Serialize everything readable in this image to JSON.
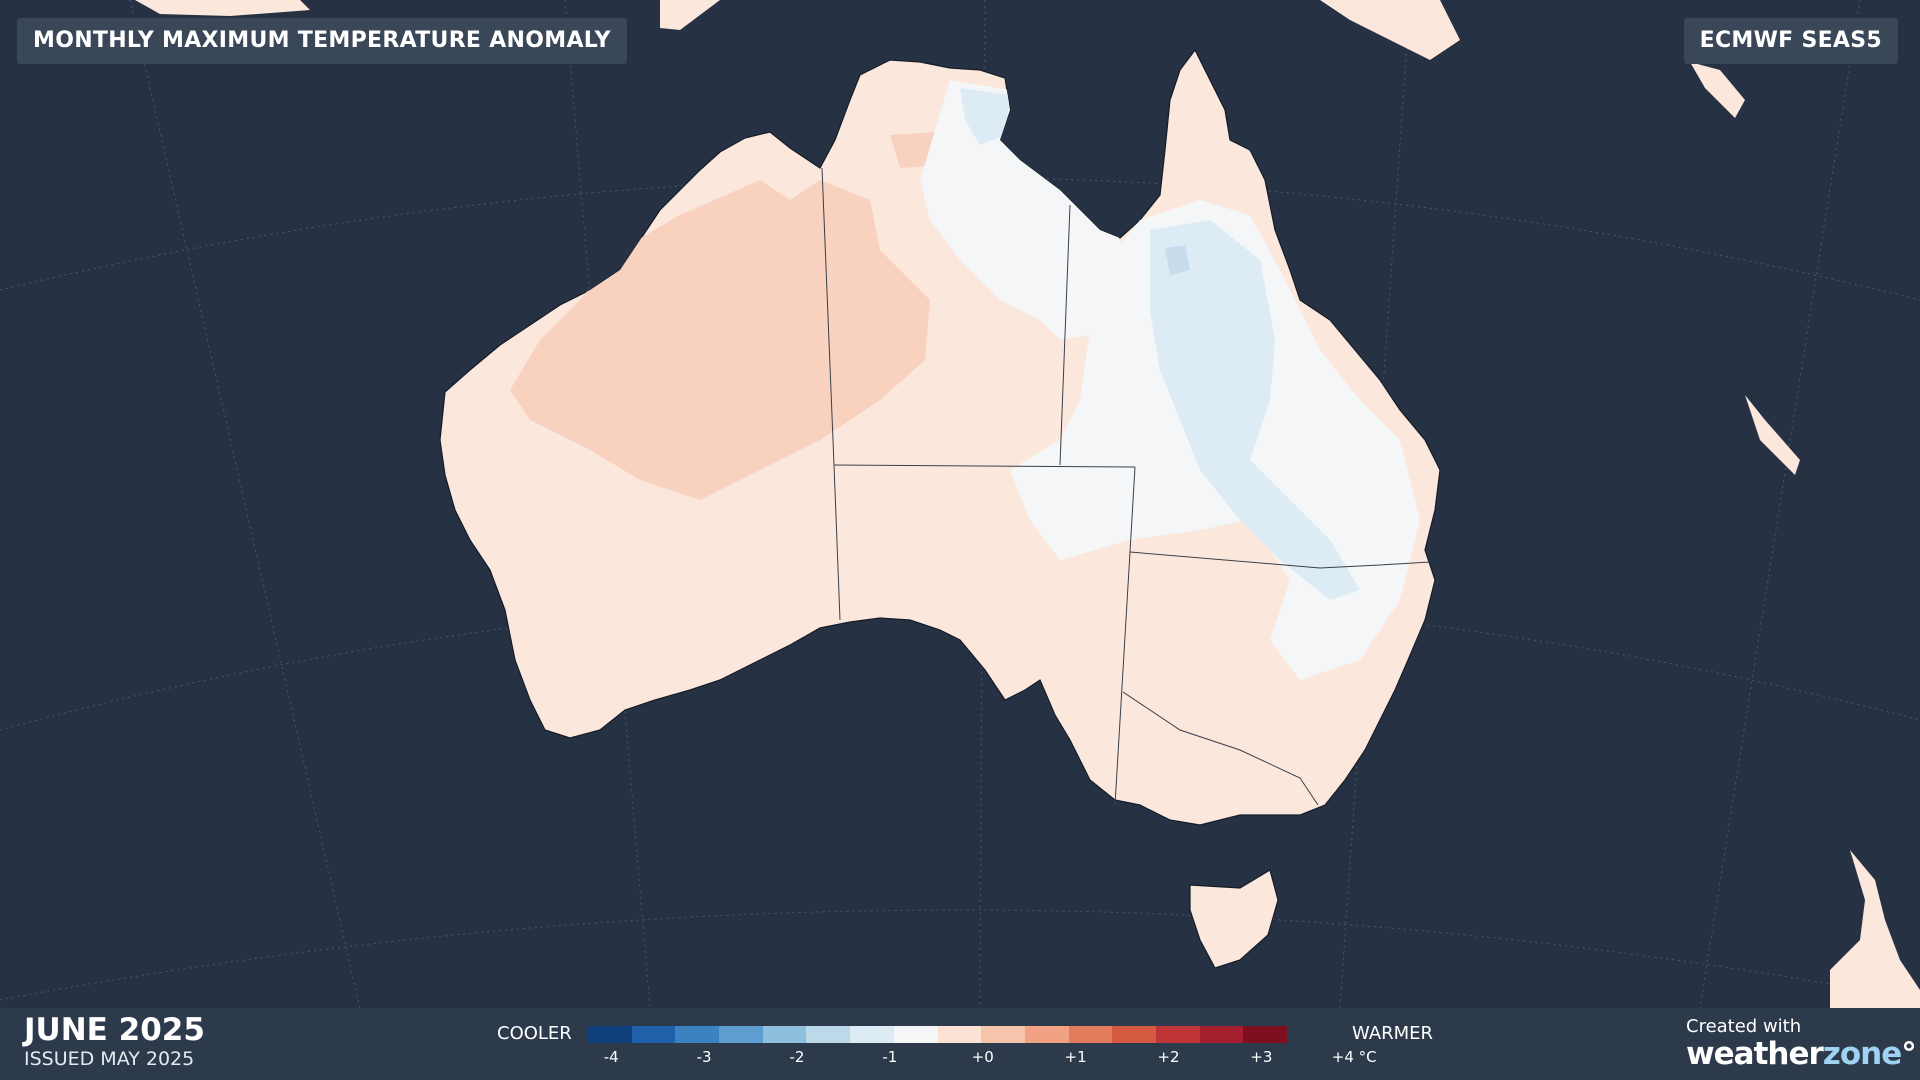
{
  "header": {
    "title": "MONTHLY MAXIMUM TEMPERATURE ANOMALY",
    "source": "ECMWF SEAS5"
  },
  "footer": {
    "date": "JUNE 2025",
    "issued": "ISSUED MAY 2025",
    "cooler_label": "COOLER",
    "warmer_label": "WARMER",
    "credit_top": "Created with",
    "brand_main": "weather",
    "brand_accent": "zone",
    "brand_mark": "°"
  },
  "legend": {
    "colors": [
      "#0f3f7a",
      "#2060aa",
      "#3a82c0",
      "#5c9ed0",
      "#8ebfdd",
      "#bcd9ea",
      "#dcebf4",
      "#f4f6f8",
      "#fbe2d4",
      "#f6c4aa",
      "#f0a283",
      "#e37c5c",
      "#d35940",
      "#bf3434",
      "#a61f2e",
      "#7f0f1f"
    ],
    "ticks": [
      "-4",
      "-3",
      "-2",
      "-1",
      "+0",
      "+1",
      "+2",
      "+3",
      "+4 °C"
    ]
  },
  "map_colors": {
    "ocean": "#263244",
    "warm_light": "#fce7dd",
    "warm_medium": "#f9d1bf",
    "neutral": "#f4f6f8",
    "cool_light": "#dcebf4",
    "cool_medium": "#c7ddee"
  }
}
